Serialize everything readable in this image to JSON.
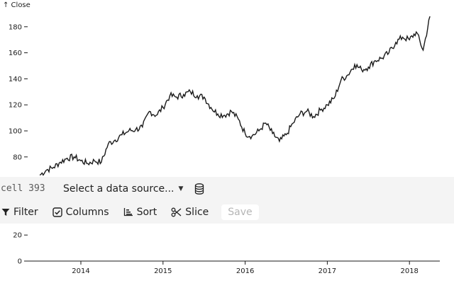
{
  "chart_data": {
    "type": "line",
    "ylabel": "↑ Close",
    "x_ticks": [
      "2014",
      "2015",
      "2016",
      "2017",
      "2018"
    ],
    "y_ticks_upper": [
      80,
      100,
      120,
      140,
      160,
      180
    ],
    "y_ticks_lower": [
      0,
      20
    ],
    "ylim": [
      0,
      190
    ],
    "xlim": [
      "2013-06",
      "2018-04"
    ],
    "series": [
      {
        "x": [
          "2013-07",
          "2013-08",
          "2013-09",
          "2013-10",
          "2013-11",
          "2013-12",
          "2014-01",
          "2014-02",
          "2014-03",
          "2014-04",
          "2014-05",
          "2014-06",
          "2014-07",
          "2014-08",
          "2014-09",
          "2014-10",
          "2014-11",
          "2014-12",
          "2015-01",
          "2015-02",
          "2015-03",
          "2015-04",
          "2015-05",
          "2015-06",
          "2015-07",
          "2015-08",
          "2015-09",
          "2015-10",
          "2015-11",
          "2015-12",
          "2016-01",
          "2016-02",
          "2016-03",
          "2016-04",
          "2016-05",
          "2016-06",
          "2016-07",
          "2016-08",
          "2016-09",
          "2016-10",
          "2016-11",
          "2016-12",
          "2017-01",
          "2017-02",
          "2017-03",
          "2017-04",
          "2017-05",
          "2017-06",
          "2017-07",
          "2017-08",
          "2017-09",
          "2017-10",
          "2017-11",
          "2017-12",
          "2018-01",
          "2018-02",
          "2018-03",
          "2018-04"
        ],
        "y": [
          66,
          70,
          72,
          76,
          79,
          80,
          77,
          75,
          77,
          76,
          90,
          93,
          97,
          100,
          101,
          103,
          115,
          112,
          118,
          127,
          126,
          128,
          130,
          127,
          126,
          118,
          113,
          112,
          115,
          109,
          98,
          96,
          100,
          106,
          98,
          92,
          97,
          106,
          113,
          115,
          111,
          116,
          120,
          125,
          139,
          143,
          151,
          147,
          149,
          154,
          156,
          160,
          168,
          172,
          170,
          176,
          162,
          188
        ]
      }
    ]
  },
  "cell": {
    "label": "cell 393",
    "data_source_label": "Select a data source..."
  },
  "toolbar": {
    "filter_label": "Filter",
    "columns_label": "Columns",
    "sort_label": "Sort",
    "slice_label": "Slice",
    "save_label": "Save"
  },
  "icons": {
    "database": "database-icon",
    "filter": "filter-icon",
    "columns": "checkbox-icon",
    "sort": "sort-icon",
    "slice": "scissors-icon"
  },
  "colors": {
    "line": "#1a1a1a",
    "toolbar_bg": "#f4f4f4",
    "save_disabled": "#b5b5b5"
  }
}
